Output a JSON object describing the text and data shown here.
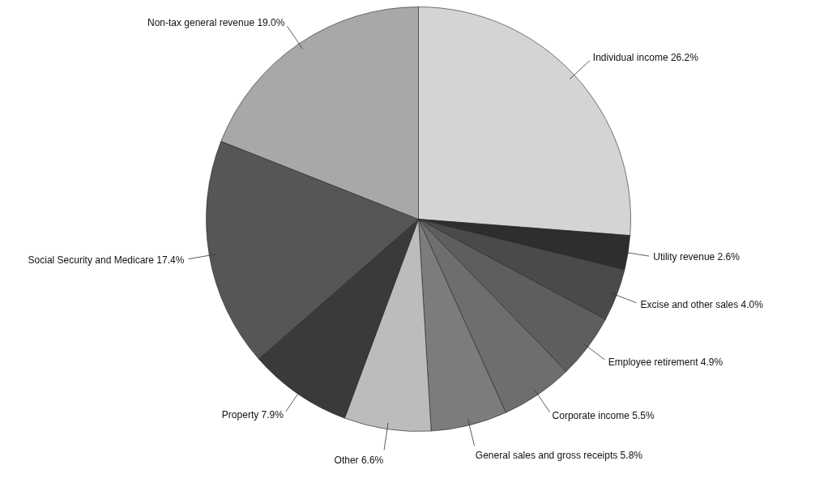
{
  "chart_data": {
    "type": "pie",
    "categories": [
      "Individual income",
      "Utility revenue",
      "Excise and other sales",
      "Employee retirement",
      "Corporate income",
      "General sales and gross receipts",
      "Other",
      "Property",
      "Social Security and Medicare",
      "Non-tax general revenue"
    ],
    "values": [
      26.2,
      2.6,
      4.0,
      4.9,
      5.5,
      5.8,
      6.6,
      7.9,
      17.4,
      19.0
    ],
    "value_labels": [
      "26.2%",
      "2.6%",
      "4.0%",
      "4.9%",
      "5.5%",
      "5.8%",
      "6.6%",
      "7.9%",
      "17.4%",
      "19.0%"
    ],
    "colors": [
      "#d4d4d4",
      "#2e2e2e",
      "#4a4a4a",
      "#5e5e5e",
      "#6e6e6e",
      "#7c7c7c",
      "#bcbcbc",
      "#3a3a3a",
      "#565656",
      "#a8a8a8"
    ],
    "legend": false
  }
}
